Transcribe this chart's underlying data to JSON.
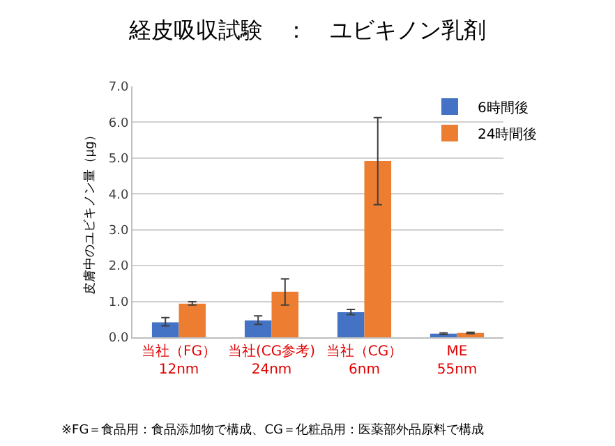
{
  "chart_data": {
    "type": "bar",
    "title": "経皮吸収試験　：　ユビキノン乳剤",
    "ylabel": "皮膚中のユビキノン量（μg）",
    "categories": [
      "当社（FG）\n12nm",
      "当社(CG参考)\n24nm",
      "当社（CG）\n6nm",
      "ME\n55nm"
    ],
    "series": [
      {
        "name": "6時間後",
        "color": "#4472c4",
        "values": [
          0.42,
          0.47,
          0.7,
          0.1
        ],
        "errors": [
          [
            0.32,
            0.55
          ],
          [
            0.36,
            0.6
          ],
          [
            0.63,
            0.78
          ],
          [
            0.08,
            0.12
          ]
        ]
      },
      {
        "name": "24時間後",
        "color": "#ed7d31",
        "values": [
          0.94,
          1.27,
          4.92,
          0.12
        ],
        "errors": [
          [
            0.9,
            0.99
          ],
          [
            0.9,
            1.63
          ],
          [
            3.7,
            6.13
          ],
          [
            0.1,
            0.14
          ]
        ]
      }
    ],
    "ylim": [
      0,
      7
    ],
    "yticks": [
      {
        "value": 0,
        "label": "0.0"
      },
      {
        "value": 1,
        "label": "1.0"
      },
      {
        "value": 2,
        "label": "2.0"
      },
      {
        "value": 3,
        "label": "3.0"
      },
      {
        "value": 4,
        "label": "4.0"
      },
      {
        "value": 5,
        "label": "5.0"
      },
      {
        "value": 6,
        "label": "6.0"
      },
      {
        "value": 7,
        "label": "7.0"
      }
    ],
    "grid": "y",
    "legend": "top right",
    "annotations": [
      "※FG＝食品用：食品添加物で構成、CG＝化粧品用：医薬部外品原料で構成"
    ]
  }
}
